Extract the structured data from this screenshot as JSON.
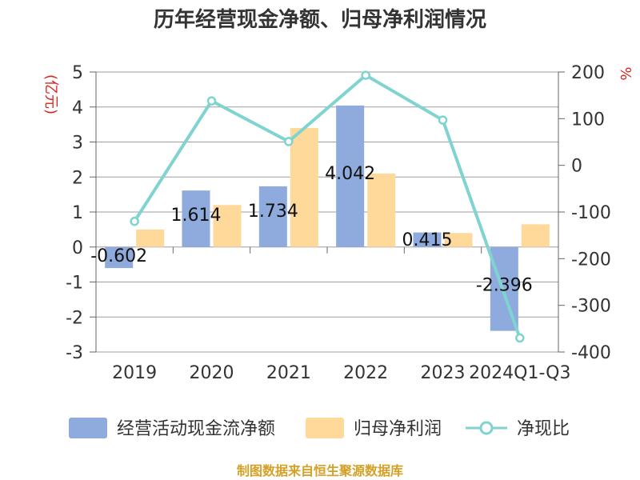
{
  "chart_data": {
    "type": "bar",
    "title": "历年经营现金净额、归母净利润情况",
    "left_unit": "(亿元)",
    "right_unit": "%",
    "categories": [
      "2019",
      "2020",
      "2021",
      "2022",
      "2023",
      "2024Q1-Q3"
    ],
    "left_axis": {
      "min": -3,
      "max": 5,
      "ticks": [
        "5",
        "4",
        "3",
        "2",
        "1",
        "0",
        "-1",
        "-2",
        "-3"
      ]
    },
    "right_axis": {
      "min": -400,
      "max": 200,
      "ticks": [
        "200",
        "100",
        "0",
        "-100",
        "-200",
        "-300",
        "-400"
      ]
    },
    "grid": true,
    "legend_position": "bottom",
    "series": [
      {
        "name": "经营活动现金流净额",
        "kind": "bar",
        "axis": "left",
        "color": "#8faadc",
        "values": [
          -0.602,
          1.614,
          1.734,
          4.042,
          0.415,
          -2.396
        ],
        "labels": [
          "-0.602",
          "1.614",
          "1.734",
          "4.042",
          "0.415",
          "-2.396"
        ]
      },
      {
        "name": "归母净利润",
        "kind": "bar",
        "axis": "left",
        "color": "#ffd99a",
        "values": [
          0.5,
          1.2,
          3.4,
          2.1,
          0.4,
          0.65
        ]
      },
      {
        "name": "净现比",
        "kind": "line",
        "axis": "right",
        "color": "#7fd3d0",
        "values": [
          -120,
          138,
          51,
          193,
          97,
          -370
        ]
      }
    ]
  },
  "footer": "制图数据来自恒生聚源数据库"
}
